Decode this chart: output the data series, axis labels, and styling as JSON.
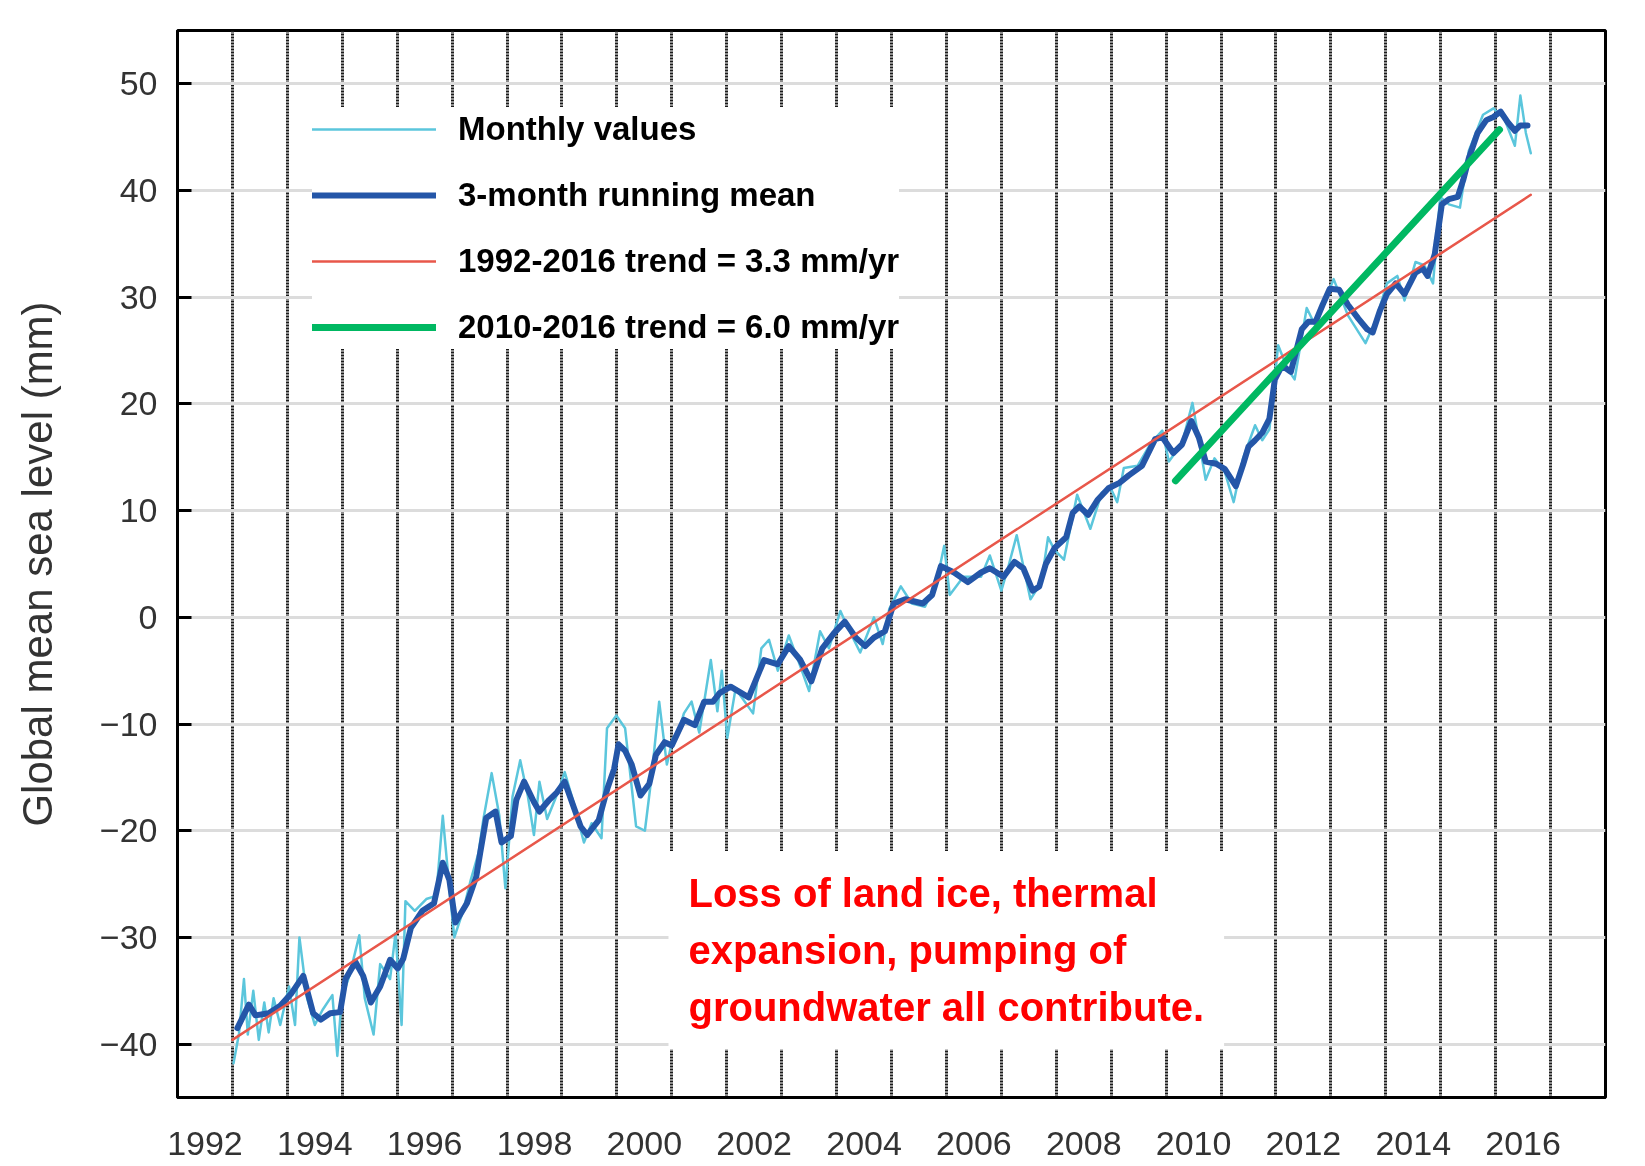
{
  "chart_data": {
    "type": "line",
    "ylabel": "Global mean sea level (mm)",
    "xlim": [
      1991.5,
      2017.5
    ],
    "xticks": [
      1992,
      {
        "value": 1992.5,
        "label": null
      },
      {
        "value": 1993.5,
        "label": null
      },
      1994,
      {
        "value": 1994.5,
        "label": null
      },
      {
        "value": 1995.5,
        "label": null
      },
      1996,
      {
        "value": 1996.5,
        "label": null
      },
      {
        "value": 1997.5,
        "label": null
      },
      1998,
      {
        "value": 1998.5,
        "label": null
      },
      {
        "value": 1999.5,
        "label": null
      },
      2000,
      {
        "value": 2000.5,
        "label": null
      },
      {
        "value": 2001.5,
        "label": null
      },
      2002,
      {
        "value": 2002.5,
        "label": null
      },
      {
        "value": 2003.5,
        "label": null
      },
      2004,
      {
        "value": 2004.5,
        "label": null
      },
      {
        "value": 2005.5,
        "label": null
      },
      2006,
      {
        "value": 2006.5,
        "label": null
      },
      {
        "value": 2007.5,
        "label": null
      },
      2008,
      {
        "value": 2008.5,
        "label": null
      },
      {
        "value": 2009.5,
        "label": null
      },
      2010,
      {
        "value": 2010.5,
        "label": null
      },
      {
        "value": 2011.5,
        "label": null
      },
      2012,
      {
        "value": 2012.5,
        "label": null
      },
      {
        "value": 2013.5,
        "label": null
      },
      2014,
      {
        "value": 2014.5,
        "label": null
      },
      {
        "value": 2015.5,
        "label": null
      },
      2016,
      {
        "value": 2016.5,
        "label": null
      }
    ],
    "ylim": [
      -45,
      55
    ],
    "yticks": [
      {
        "value": -40,
        "label": "−40"
      },
      {
        "value": -30,
        "label": "−30"
      },
      {
        "value": -20,
        "label": "−20"
      },
      {
        "value": -10,
        "label": "−10"
      },
      0,
      10,
      20,
      30,
      40,
      50
    ],
    "grid": true,
    "legend": "top left",
    "line_style": "solid",
    "annotations": [
      "Loss of land ice, thermal expansion, pumping of groundwater all contribute."
    ],
    "series": [
      {
        "name": "Monthly values",
        "color": "#5bc6dc",
        "x": [
          1992.52,
          1992.62,
          1992.71,
          1992.78,
          1992.88,
          1992.98,
          1993.08,
          1993.16,
          1993.25,
          1993.37,
          1993.53,
          1993.64,
          1993.72,
          1993.86,
          1994.0,
          1994.14,
          1994.32,
          1994.41,
          1994.49,
          1994.63,
          1994.81,
          1994.91,
          1995.07,
          1995.19,
          1995.37,
          1995.47,
          1995.58,
          1995.65,
          1995.82,
          1996.03,
          1996.21,
          1996.33,
          1996.45,
          1996.54,
          1996.7,
          1996.84,
          1996.98,
          1997.07,
          1997.22,
          1997.36,
          1997.47,
          1997.6,
          1997.74,
          1997.88,
          1997.99,
          1998.09,
          1998.23,
          1998.41,
          1998.55,
          1998.72,
          1998.9,
          1999.04,
          1999.22,
          1999.32,
          1999.49,
          1999.65,
          1999.85,
          2000.01,
          2000.13,
          2000.27,
          2000.41,
          2000.52,
          2000.62,
          2000.72,
          2000.86,
          2001.0,
          2001.21,
          2001.33,
          2001.41,
          2001.51,
          2001.66,
          2001.98,
          2002.13,
          2002.27,
          2002.43,
          2002.63,
          2002.84,
          2003.0,
          2003.2,
          2003.36,
          2003.57,
          2003.69,
          2003.93,
          2004.18,
          2004.34,
          2004.46,
          2004.67,
          2004.87,
          2005.11,
          2005.32,
          2005.46,
          2005.56,
          2005.81,
          2006.13,
          2006.29,
          2006.5,
          2006.62,
          2006.78,
          2007.03,
          2007.23,
          2007.35,
          2007.47,
          2007.64,
          2007.88,
          2008.12,
          2008.33,
          2008.49,
          2008.61,
          2008.73,
          2008.98,
          2009.22,
          2009.43,
          2009.55,
          2009.79,
          2009.98,
          2010.22,
          2010.38,
          2010.57,
          2010.73,
          2010.9,
          2011.12,
          2011.25,
          2011.38,
          2011.54,
          2011.71,
          2011.84,
          2012.06,
          2012.22,
          2012.55,
          2012.81,
          2013.13,
          2013.33,
          2013.52,
          2013.71,
          2013.84,
          2014.04,
          2014.2,
          2014.36,
          2014.49,
          2014.65,
          2014.85,
          2015.01,
          2015.27,
          2015.46,
          2015.66,
          2015.85,
          2015.95,
          2016.05,
          2016.14
        ],
        "values": [
          -41.8,
          -39.0,
          -33.9,
          -39.1,
          -35.0,
          -39.6,
          -36.1,
          -38.9,
          -35.7,
          -38.2,
          -34.6,
          -38.2,
          -30.0,
          -35.7,
          -38.2,
          -36.8,
          -35.4,
          -41.1,
          -35.7,
          -33.6,
          -29.8,
          -35.7,
          -39.1,
          -32.5,
          -33.9,
          -29.6,
          -38.2,
          -26.6,
          -27.5,
          -26.4,
          -26.1,
          -18.6,
          -25.4,
          -30.0,
          -27.5,
          -24.6,
          -22.1,
          -18.9,
          -14.6,
          -18.6,
          -25.4,
          -16.8,
          -13.4,
          -16.8,
          -20.4,
          -15.4,
          -18.9,
          -16.6,
          -14.5,
          -17.5,
          -21.1,
          -19.3,
          -20.7,
          -10.4,
          -9.2,
          -10.4,
          -19.6,
          -20.0,
          -15.0,
          -7.9,
          -13.8,
          -11.3,
          -10.8,
          -9.0,
          -7.9,
          -10.8,
          -4.0,
          -8.8,
          -5.0,
          -11.3,
          -6.7,
          -9.0,
          -2.9,
          -2.1,
          -5.0,
          -1.7,
          -4.6,
          -6.9,
          -1.3,
          -2.9,
          0.6,
          -0.8,
          -3.3,
          0.0,
          -2.5,
          0.8,
          2.9,
          1.3,
          1.0,
          3.3,
          6.7,
          2.1,
          3.8,
          3.8,
          5.8,
          2.5,
          4.6,
          7.7,
          1.7,
          3.3,
          7.5,
          6.3,
          5.4,
          11.5,
          8.3,
          11.7,
          12.1,
          10.8,
          14.0,
          14.2,
          16.3,
          17.5,
          14.6,
          16.3,
          20.1,
          12.9,
          14.9,
          13.6,
          10.8,
          14.9,
          18.0,
          16.6,
          17.6,
          25.5,
          23.3,
          22.3,
          29.0,
          27.3,
          31.7,
          28.3,
          25.7,
          28.0,
          31.3,
          32.0,
          29.7,
          33.3,
          33.0,
          31.3,
          39.4,
          38.7,
          38.4,
          43.7,
          47.1,
          47.7,
          46.7,
          44.2,
          48.9,
          45.4,
          43.5
        ]
      },
      {
        "name": "3-month running mean",
        "color": "#2456a8",
        "x": [
          1992.59,
          1992.8,
          1992.92,
          1993.16,
          1993.37,
          1993.58,
          1993.79,
          1993.97,
          1994.11,
          1994.28,
          1994.46,
          1994.56,
          1994.74,
          1994.88,
          1995.02,
          1995.19,
          1995.37,
          1995.51,
          1995.61,
          1995.75,
          1995.96,
          1996.17,
          1996.33,
          1996.45,
          1996.56,
          1996.77,
          1996.94,
          1997.01,
          1997.12,
          1997.29,
          1997.4,
          1997.57,
          1997.67,
          1997.81,
          1997.99,
          1998.09,
          1998.27,
          1998.41,
          1998.55,
          1998.84,
          1998.96,
          1999.17,
          1999.33,
          1999.45,
          1999.53,
          1999.65,
          1999.77,
          1999.93,
          2000.09,
          2000.21,
          2000.37,
          2000.5,
          2000.72,
          2000.92,
          2001.09,
          2001.25,
          2001.37,
          2001.57,
          2001.9,
          2002.18,
          2002.43,
          2002.63,
          2002.84,
          2003.04,
          2003.24,
          2003.45,
          2003.65,
          2003.85,
          2004.02,
          2004.18,
          2004.38,
          2004.54,
          2004.75,
          2005.07,
          2005.24,
          2005.4,
          2005.64,
          2005.89,
          2006.13,
          2006.29,
          2006.54,
          2006.74,
          2006.9,
          2007.07,
          2007.19,
          2007.31,
          2007.47,
          2007.68,
          2007.8,
          2007.92,
          2008.08,
          2008.25,
          2008.45,
          2008.65,
          2008.82,
          2009.06,
          2009.3,
          2009.43,
          2009.63,
          2009.79,
          2009.96,
          2010.1,
          2010.22,
          2010.41,
          2010.57,
          2010.77,
          2010.9,
          2011.0,
          2011.12,
          2011.25,
          2011.38,
          2011.48,
          2011.61,
          2011.77,
          2011.97,
          2012.09,
          2012.22,
          2012.35,
          2012.48,
          2012.65,
          2012.81,
          2013.0,
          2013.16,
          2013.26,
          2013.39,
          2013.52,
          2013.68,
          2013.84,
          2014.04,
          2014.17,
          2014.26,
          2014.39,
          2014.52,
          2014.65,
          2014.81,
          2014.91,
          2015.01,
          2015.17,
          2015.33,
          2015.46,
          2015.59,
          2015.72,
          2015.85,
          2015.95,
          2016.08
        ],
        "values": [
          -38.5,
          -36.3,
          -37.3,
          -37.1,
          -36.4,
          -35.2,
          -33.6,
          -37.1,
          -37.7,
          -37.1,
          -37.0,
          -33.9,
          -32.3,
          -33.6,
          -36.1,
          -34.6,
          -32.1,
          -32.9,
          -32.0,
          -29.1,
          -27.5,
          -26.8,
          -23.0,
          -24.6,
          -28.6,
          -26.8,
          -24.3,
          -22.1,
          -18.8,
          -18.2,
          -21.1,
          -20.5,
          -17.1,
          -15.4,
          -17.3,
          -18.2,
          -17.1,
          -16.4,
          -15.4,
          -19.6,
          -20.4,
          -19.0,
          -16.0,
          -14.2,
          -11.9,
          -12.5,
          -13.8,
          -16.7,
          -15.6,
          -12.9,
          -11.7,
          -12.0,
          -9.6,
          -10.1,
          -7.9,
          -7.9,
          -7.1,
          -6.5,
          -7.5,
          -4.0,
          -4.4,
          -2.7,
          -4.0,
          -6.0,
          -2.9,
          -1.5,
          -0.4,
          -1.9,
          -2.7,
          -1.9,
          -1.3,
          1.3,
          1.7,
          1.3,
          2.1,
          4.8,
          4.2,
          3.3,
          4.2,
          4.6,
          3.8,
          5.2,
          4.6,
          2.5,
          2.9,
          5.0,
          6.5,
          7.5,
          9.8,
          10.4,
          9.6,
          11.0,
          12.1,
          12.6,
          13.3,
          14.2,
          16.7,
          16.9,
          15.4,
          16.2,
          18.4,
          16.8,
          14.6,
          14.4,
          13.9,
          12.3,
          14.3,
          16.0,
          16.6,
          17.3,
          18.6,
          22.3,
          23.6,
          23.0,
          27.0,
          27.7,
          27.7,
          29.3,
          30.8,
          30.7,
          29.3,
          28.0,
          27.0,
          26.7,
          28.7,
          30.3,
          31.3,
          30.3,
          32.3,
          32.7,
          32.0,
          34.0,
          38.7,
          39.2,
          39.4,
          41.0,
          43.0,
          45.4,
          46.6,
          46.9,
          47.4,
          46.4,
          45.6,
          46.1,
          46.1
        ]
      },
      {
        "name": "1992-2016 trend = 3.3 mm/yr",
        "color": "#e8574a",
        "x": [
          1992.5,
          2016.14
        ],
        "values": [
          -39.6,
          39.6
        ]
      },
      {
        "name": "2010-2016 trend = 6.0 mm/yr",
        "color": "#00b862",
        "x": [
          2009.67,
          2015.57
        ],
        "values": [
          12.8,
          45.7
        ]
      }
    ]
  }
}
